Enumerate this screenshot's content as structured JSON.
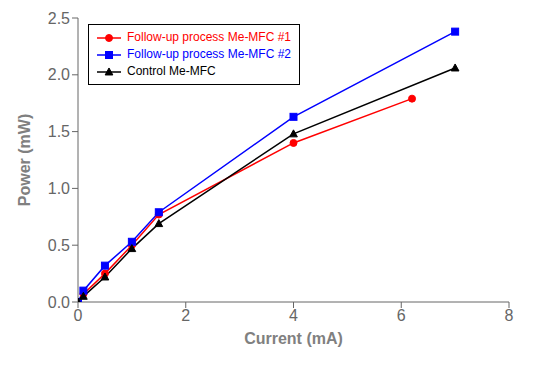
{
  "chart_data": {
    "type": "line",
    "xlabel": "Current (mA)",
    "ylabel": "Power (mW)",
    "xlim": [
      0,
      8
    ],
    "ylim": [
      0,
      2.5
    ],
    "xticks": [
      0,
      2,
      4,
      6,
      8
    ],
    "yticks": [
      {
        "value": 0,
        "label": "0.0"
      },
      0.5,
      {
        "value": 1,
        "label": "1.0"
      },
      1.5,
      {
        "value": 2,
        "label": "2.0"
      },
      2.5
    ],
    "legend": "upper left",
    "series": [
      {
        "name": "Follow-up process Me-MFC #1",
        "color": "red",
        "marker": "circle",
        "x": [
          0.0,
          0.1,
          0.5,
          1.0,
          1.5,
          4.0,
          6.2
        ],
        "values": [
          0.0,
          0.07,
          0.25,
          0.5,
          0.77,
          1.4,
          1.79
        ]
      },
      {
        "name": "Follow-up process Me-MFC #2",
        "color": "blue",
        "marker": "square",
        "x": [
          0.0,
          0.1,
          0.5,
          1.0,
          1.5,
          4.0,
          7.0
        ],
        "values": [
          0.0,
          0.1,
          0.32,
          0.53,
          0.79,
          1.63,
          2.38
        ]
      },
      {
        "name": "Control Me-MFC",
        "color": "black",
        "marker": "triangle",
        "x": [
          0.0,
          0.1,
          0.5,
          1.0,
          1.5,
          4.0,
          7.0
        ],
        "values": [
          0.0,
          0.05,
          0.22,
          0.47,
          0.69,
          1.48,
          2.06
        ]
      }
    ]
  }
}
